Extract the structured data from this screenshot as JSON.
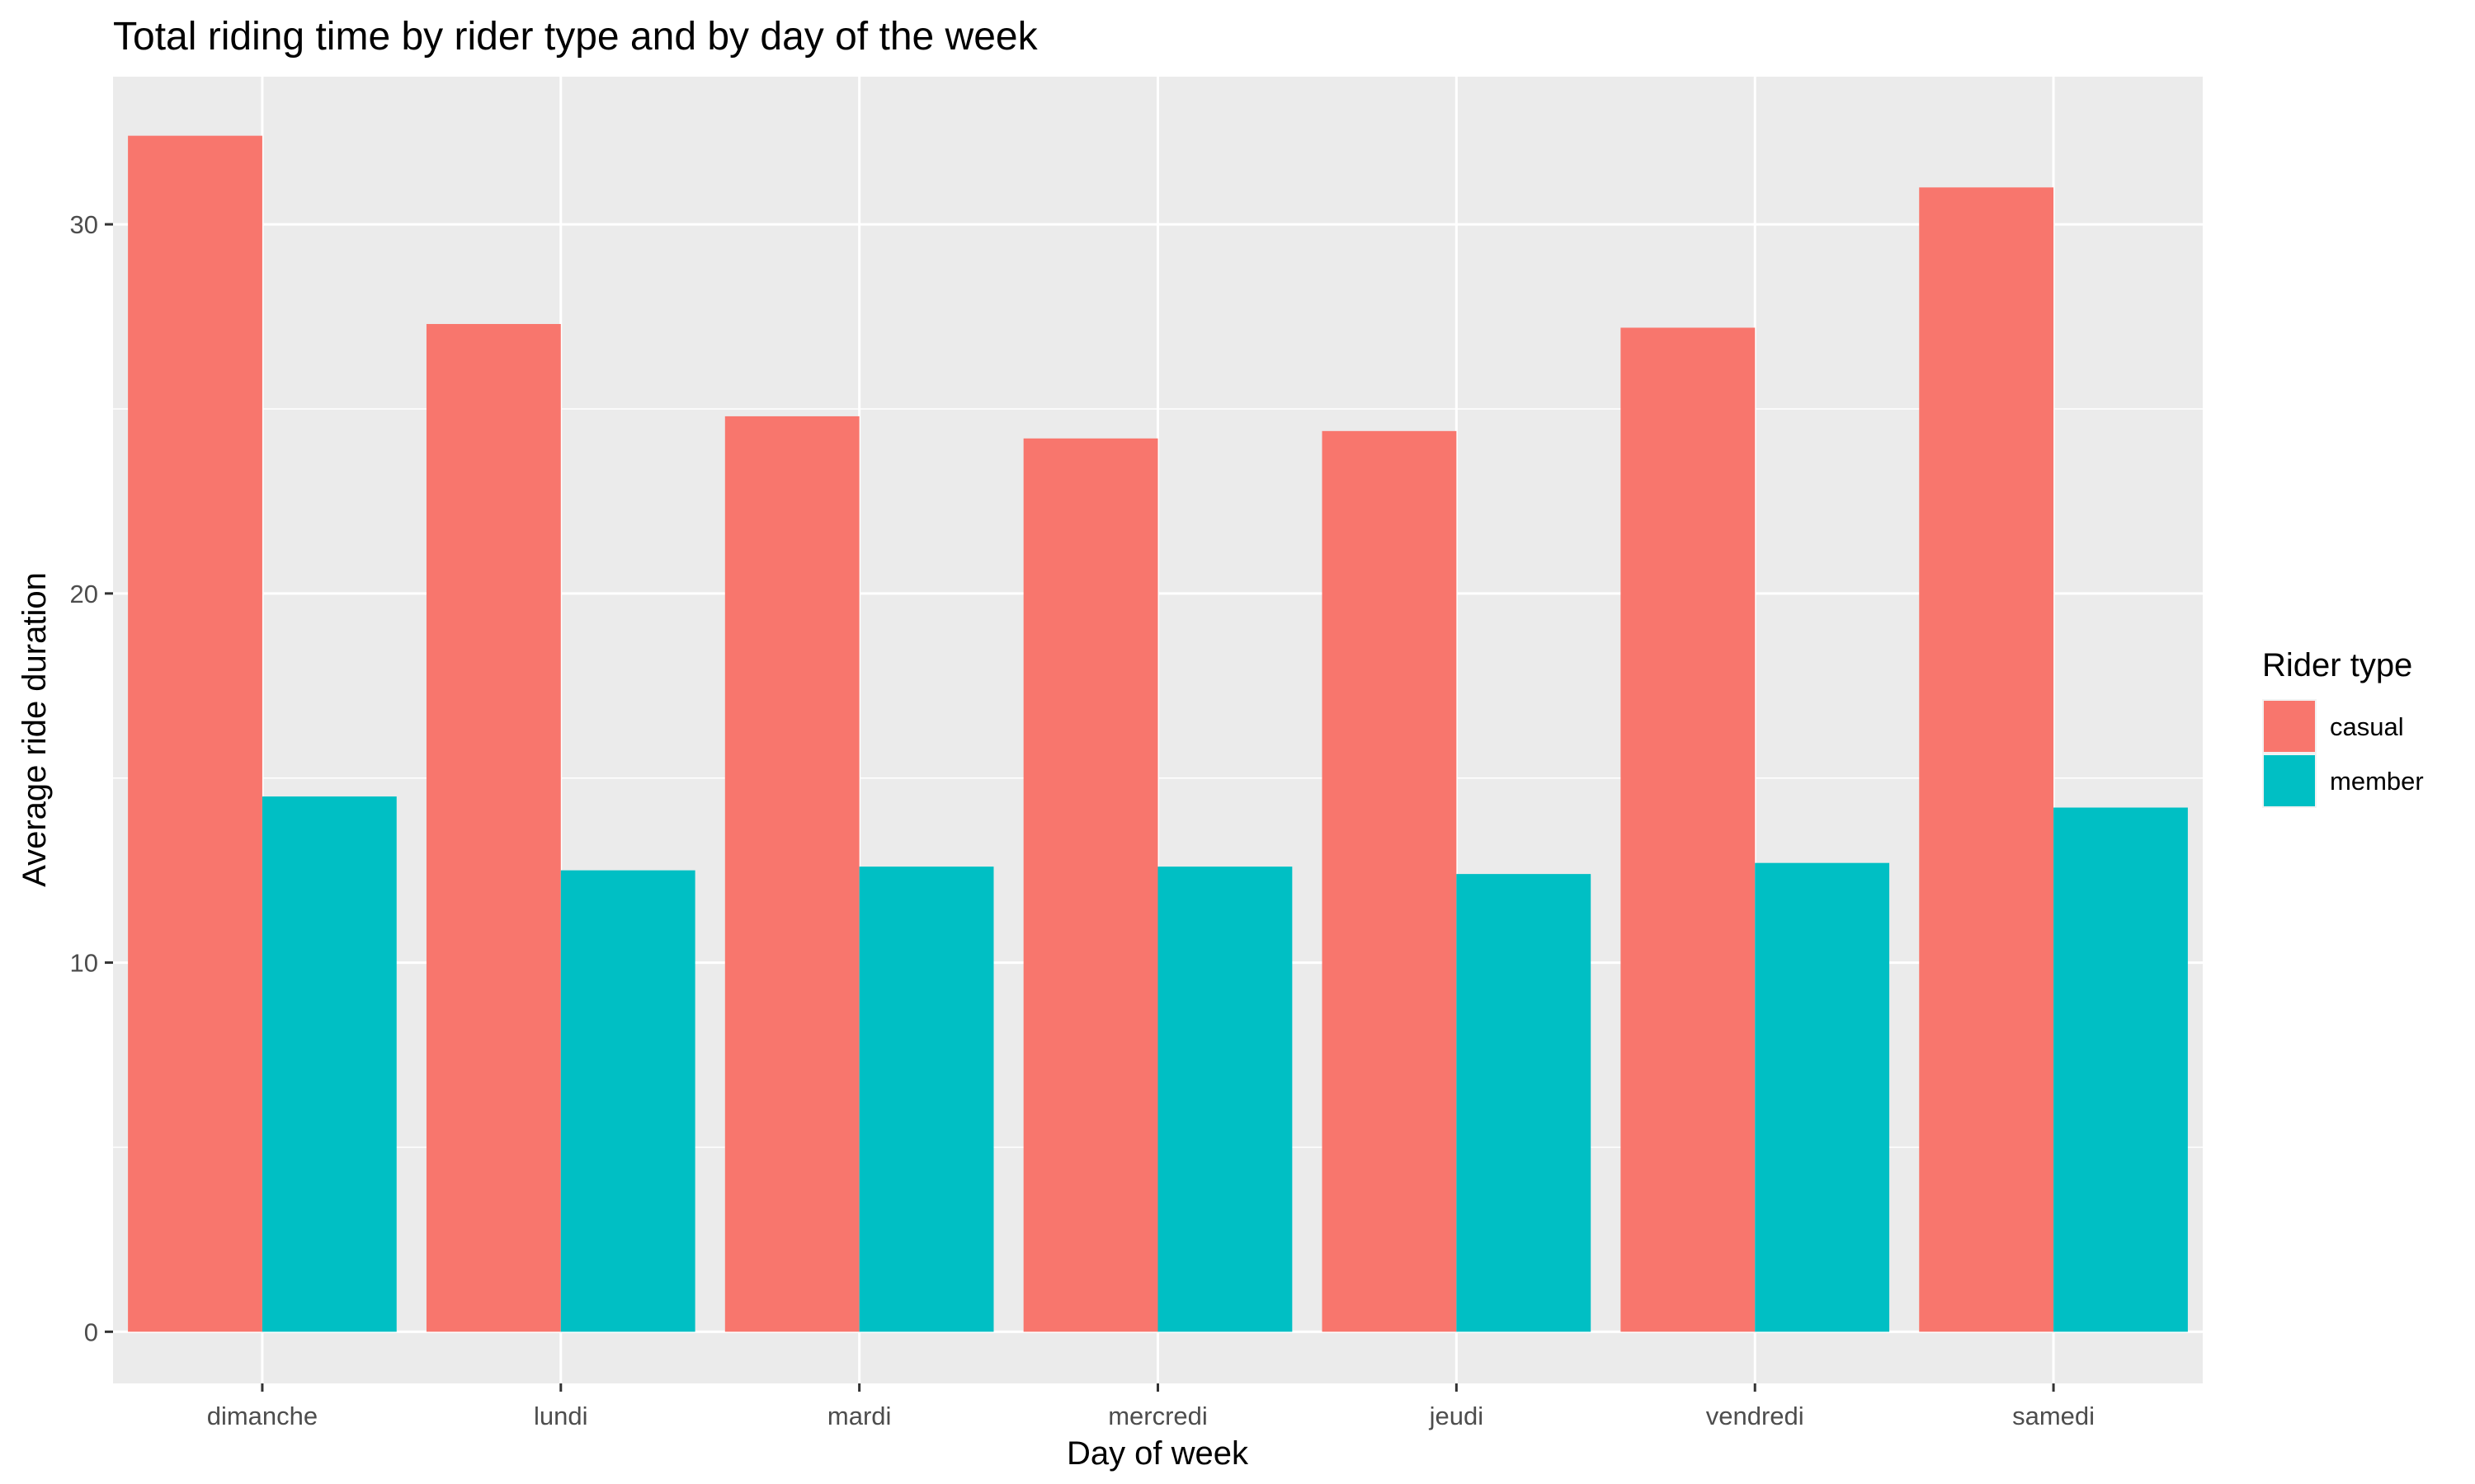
{
  "chart_data": {
    "type": "bar",
    "title": "Total riding time by rider type and by day of the week",
    "xlabel": "Day of week",
    "ylabel": "Average ride duration",
    "categories": [
      "dimanche",
      "lundi",
      "mardi",
      "mercredi",
      "jeudi",
      "vendredi",
      "samedi"
    ],
    "series": [
      {
        "name": "casual",
        "color": "#F8766D",
        "values": [
          32.4,
          27.3,
          24.8,
          24.2,
          24.4,
          27.2,
          31.0
        ]
      },
      {
        "name": "member",
        "color": "#00BFC4",
        "values": [
          14.5,
          12.5,
          12.6,
          12.6,
          12.4,
          12.7,
          14.2
        ]
      }
    ],
    "ylim": [
      -1.4,
      34.0
    ],
    "yticks": [
      0,
      10,
      20,
      30
    ],
    "grid": true,
    "panel_background": "#EBEBEB",
    "gridline_color": "#FFFFFF",
    "legend": {
      "title": "Rider type",
      "position": "right"
    }
  }
}
